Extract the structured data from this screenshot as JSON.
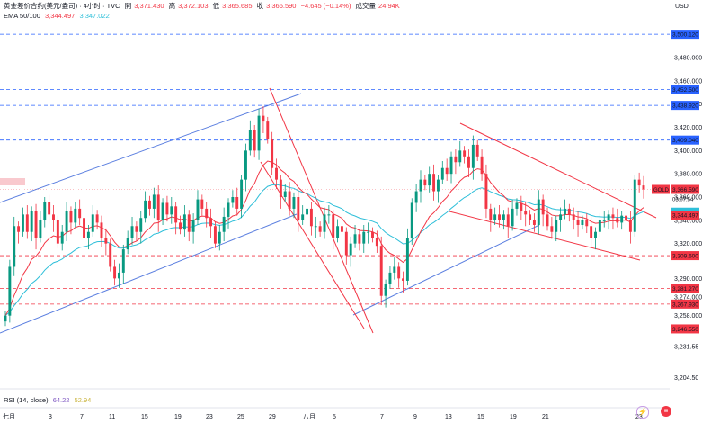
{
  "header": {
    "title": "黄金差价合约(美元/盎司) · 4小时 · TVC",
    "open_label": "開",
    "open": "3,371.430",
    "high_label": "高",
    "high": "3,372.103",
    "low_label": "低",
    "low": "3,365.685",
    "close_label": "收",
    "close": "3,366.590",
    "change": "−4.645 (−0.14%)",
    "volume_label": "成交量",
    "volume": "24.94K"
  },
  "ema_legend": {
    "name": "EMA 50/100",
    "v1": "3,344.497",
    "v2": "3,347.022"
  },
  "rsi_legend": {
    "name": "RSI (14, close)",
    "v1": "64.22",
    "v2": "52.94"
  },
  "axis": {
    "currency": "USD"
  },
  "symbol_tag": "GOLD",
  "countdown": "03:07:54",
  "colors": {
    "up": "#089981",
    "down": "#f23645",
    "ema50": "#f23645",
    "ema100": "#2ebfd9",
    "channel_blue": "#5b7fe0",
    "channel_red": "#f23645",
    "level_blue": "#2962ff",
    "level_red": "#f23645"
  },
  "chart_data": {
    "type": "candlestick",
    "ylim": [
      3195,
      3525
    ],
    "y_ticks": [
      3204.5,
      3231.55,
      3258,
      3274,
      3290,
      3320,
      3340,
      3360,
      3380,
      3400,
      3420,
      3440,
      3460,
      3480
    ],
    "x_ticks": [
      "七月",
      "3",
      "7",
      "11",
      "15",
      "19",
      "23",
      "25",
      "29",
      "八月",
      "5",
      "7",
      "9",
      "13",
      "15",
      "19",
      "21",
      "23"
    ],
    "levels": [
      {
        "value": 3500.12,
        "label": "3,500.120",
        "kind": "blue"
      },
      {
        "value": 3452.5,
        "label": "3,452.500",
        "kind": "blue"
      },
      {
        "value": 3438.92,
        "label": "3,438.920",
        "kind": "blue"
      },
      {
        "value": 3409.04,
        "label": "3,409.040",
        "kind": "blue"
      },
      {
        "value": 3309.6,
        "label": "3,309.600",
        "kind": "red"
      },
      {
        "value": 3281.27,
        "label": "3,281.270",
        "kind": "red"
      },
      {
        "value": 3267.93,
        "label": "3,267.930",
        "kind": "red"
      },
      {
        "value": 3246.55,
        "label": "3,246.550",
        "kind": "red"
      }
    ],
    "price_tags": [
      {
        "value": 3366.59,
        "label": "3,366.590",
        "kind": "last"
      },
      {
        "value": 3347.022,
        "label": "3,347.022",
        "kind": "ema100"
      },
      {
        "value": 3344.497,
        "label": "3,344.497",
        "kind": "ema50"
      }
    ],
    "closes": [
      3258,
      3300,
      3335,
      3330,
      3345,
      3330,
      3348,
      3325,
      3340,
      3356,
      3345,
      3340,
      3320,
      3330,
      3348,
      3338,
      3350,
      3342,
      3325,
      3330,
      3345,
      3338,
      3325,
      3320,
      3300,
      3290,
      3295,
      3315,
      3325,
      3335,
      3330,
      3342,
      3357,
      3350,
      3362,
      3340,
      3355,
      3345,
      3352,
      3338,
      3332,
      3345,
      3330,
      3340,
      3358,
      3350,
      3342,
      3335,
      3320,
      3330,
      3343,
      3355,
      3360,
      3350,
      3375,
      3400,
      3418,
      3400,
      3430,
      3425,
      3410,
      3385,
      3375,
      3360,
      3365,
      3350,
      3360,
      3340,
      3345,
      3350,
      3335,
      3335,
      3330,
      3345,
      3345,
      3325,
      3335,
      3330,
      3310,
      3320,
      3328,
      3320,
      3330,
      3330,
      3325,
      3318,
      3275,
      3285,
      3295,
      3300,
      3290,
      3288,
      3325,
      3355,
      3365,
      3375,
      3370,
      3380,
      3365,
      3375,
      3385,
      3380,
      3395,
      3390,
      3400,
      3395,
      3385,
      3405,
      3395,
      3380,
      3350,
      3340,
      3345,
      3340,
      3345,
      3335,
      3350,
      3355,
      3348,
      3345,
      3340,
      3336,
      3358,
      3345,
      3335,
      3330,
      3340,
      3345,
      3350,
      3345,
      3340,
      3336,
      3340,
      3335,
      3325,
      3330,
      3340,
      3340,
      3345,
      3342,
      3338,
      3344,
      3340,
      3330,
      3375,
      3370,
      3366.6
    ]
  }
}
